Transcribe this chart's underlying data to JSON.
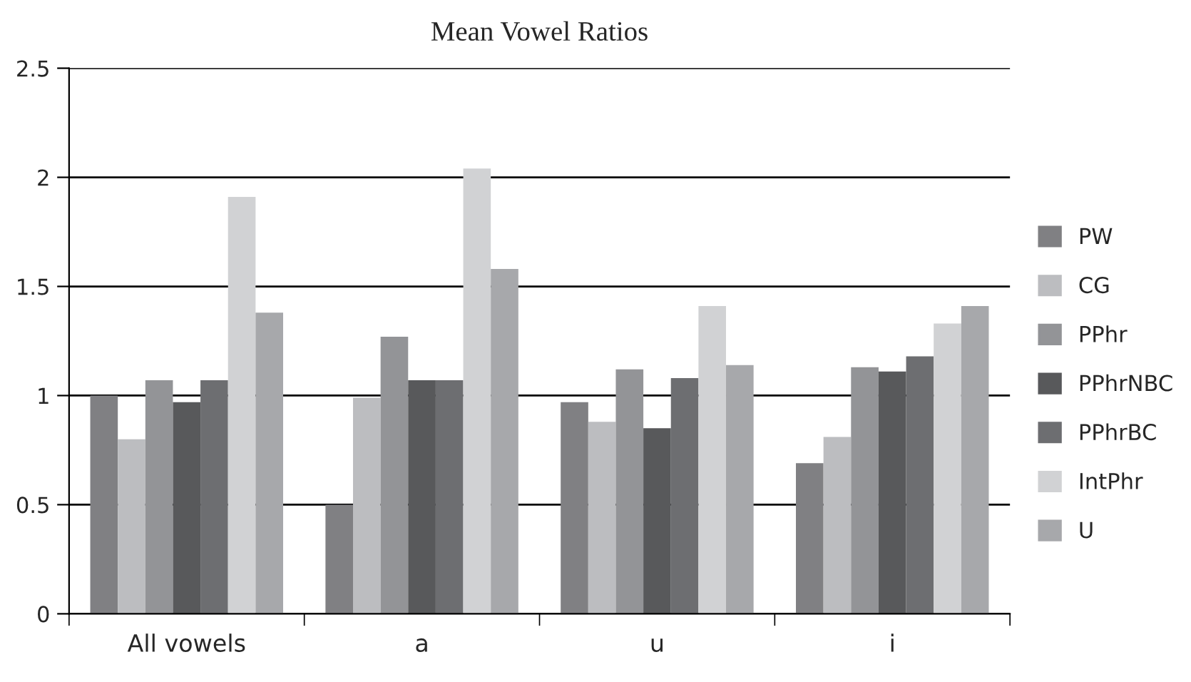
{
  "chart_data": {
    "type": "bar",
    "title": "Mean Vowel Ratios",
    "categories": [
      "All vowels",
      "a",
      "u",
      "i"
    ],
    "series": [
      {
        "name": "PW",
        "color": "#808083",
        "values": [
          1.0,
          0.5,
          0.97,
          0.69
        ]
      },
      {
        "name": "CG",
        "color": "#bcbdc0",
        "values": [
          0.8,
          0.99,
          0.88,
          0.81
        ]
      },
      {
        "name": "PPhr",
        "color": "#939497",
        "values": [
          1.07,
          1.27,
          1.12,
          1.13
        ]
      },
      {
        "name": "PPhrNBC",
        "color": "#58595b",
        "values": [
          0.97,
          1.07,
          0.85,
          1.11
        ]
      },
      {
        "name": "PPhrBC",
        "color": "#6d6e71",
        "values": [
          1.07,
          1.07,
          1.08,
          1.18
        ]
      },
      {
        "name": "IntPhr",
        "color": "#d1d2d4",
        "values": [
          1.91,
          2.04,
          1.41,
          1.33
        ]
      },
      {
        "name": "U",
        "color": "#a7a8ab",
        "values": [
          1.38,
          1.58,
          1.14,
          1.41
        ]
      }
    ],
    "ylim": [
      0,
      2.5
    ],
    "yticks": [
      0,
      0.5,
      1,
      1.5,
      2,
      2.5
    ],
    "grid": "y",
    "legend": "right"
  }
}
